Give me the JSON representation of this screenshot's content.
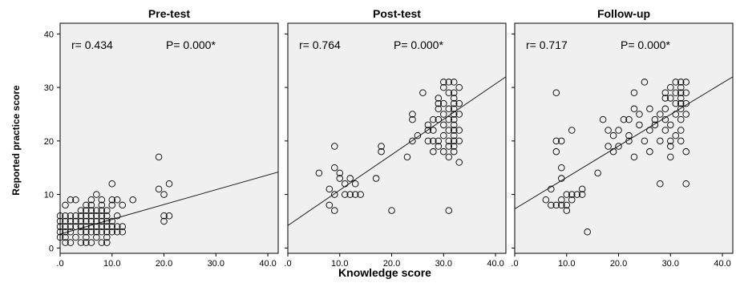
{
  "figure": {
    "xlabel": "Knowledge score",
    "ylabel": "Reported practice score"
  },
  "chart_data": [
    {
      "type": "scatter",
      "title": "Pre-test",
      "annotation": {
        "r": "r= 0.434",
        "p": "P= 0.000*"
      },
      "xlim": [
        0,
        42
      ],
      "ylim": [
        -1,
        42
      ],
      "xticks": [
        ".0",
        "10.0",
        "20.0",
        "30.0",
        "40.0"
      ],
      "yticks": [
        "0",
        "10",
        "20",
        "30",
        "40"
      ],
      "fit_line": {
        "x": [
          0,
          42
        ],
        "y": [
          2.6,
          14.2
        ]
      },
      "points": [
        [
          1,
          1
        ],
        [
          2,
          1
        ],
        [
          4,
          1
        ],
        [
          5,
          1
        ],
        [
          6,
          1
        ],
        [
          8,
          1
        ],
        [
          9,
          1
        ],
        [
          0,
          2
        ],
        [
          1,
          2
        ],
        [
          3,
          2
        ],
        [
          5,
          2
        ],
        [
          7,
          2
        ],
        [
          9,
          2
        ],
        [
          0,
          3
        ],
        [
          1,
          3
        ],
        [
          2,
          3
        ],
        [
          4,
          3
        ],
        [
          5,
          3
        ],
        [
          6,
          3
        ],
        [
          7,
          3
        ],
        [
          8,
          3
        ],
        [
          9,
          3
        ],
        [
          10,
          3
        ],
        [
          11,
          3
        ],
        [
          12,
          3
        ],
        [
          0,
          4
        ],
        [
          1,
          4
        ],
        [
          2,
          4
        ],
        [
          3,
          4
        ],
        [
          4,
          4
        ],
        [
          5,
          4
        ],
        [
          6,
          4
        ],
        [
          7,
          4
        ],
        [
          8,
          4
        ],
        [
          9,
          4
        ],
        [
          10,
          4
        ],
        [
          11,
          4
        ],
        [
          12,
          4
        ],
        [
          0,
          5
        ],
        [
          1,
          5
        ],
        [
          2,
          5
        ],
        [
          3,
          5
        ],
        [
          4,
          5
        ],
        [
          5,
          5
        ],
        [
          6,
          5
        ],
        [
          7,
          5
        ],
        [
          8,
          5
        ],
        [
          9,
          5
        ],
        [
          10,
          5
        ],
        [
          0,
          6
        ],
        [
          1,
          6
        ],
        [
          2,
          6
        ],
        [
          3,
          6
        ],
        [
          4,
          6
        ],
        [
          5,
          6
        ],
        [
          6,
          6
        ],
        [
          7,
          6
        ],
        [
          8,
          6
        ],
        [
          9,
          6
        ],
        [
          11,
          6
        ],
        [
          4,
          7
        ],
        [
          5,
          7
        ],
        [
          6,
          7
        ],
        [
          7,
          7
        ],
        [
          8,
          7
        ],
        [
          9,
          7
        ],
        [
          1,
          8
        ],
        [
          5,
          8
        ],
        [
          6,
          8
        ],
        [
          8,
          8
        ],
        [
          10,
          8
        ],
        [
          12,
          8
        ],
        [
          2,
          9
        ],
        [
          3,
          9
        ],
        [
          6,
          9
        ],
        [
          8,
          9
        ],
        [
          10,
          9
        ],
        [
          11,
          9
        ],
        [
          14,
          9
        ],
        [
          7,
          10
        ],
        [
          10,
          12
        ],
        [
          19,
          17
        ],
        [
          19,
          11
        ],
        [
          20,
          10
        ],
        [
          21,
          12
        ],
        [
          21,
          6
        ],
        [
          20,
          6
        ],
        [
          20,
          5
        ]
      ]
    },
    {
      "type": "scatter",
      "title": "Post-test",
      "annotation": {
        "r": "r= 0.764",
        "p": "P= 0.000*"
      },
      "xlim": [
        0,
        42
      ],
      "ylim": [
        -1,
        42
      ],
      "xticks": [
        ".0",
        "10.0",
        "20.0",
        "30.0",
        "40.0"
      ],
      "yticks": [
        "0",
        "10",
        "20",
        "30",
        "40"
      ],
      "fit_line": {
        "x": [
          0,
          42
        ],
        "y": [
          4.2,
          32
        ]
      },
      "points": [
        [
          6,
          14
        ],
        [
          8,
          11
        ],
        [
          8,
          8
        ],
        [
          9,
          7
        ],
        [
          9,
          10
        ],
        [
          9,
          15
        ],
        [
          9,
          19
        ],
        [
          10,
          13
        ],
        [
          10,
          14
        ],
        [
          11,
          10
        ],
        [
          11,
          12
        ],
        [
          12,
          10
        ],
        [
          12,
          13
        ],
        [
          13,
          12
        ],
        [
          13,
          10
        ],
        [
          14,
          10
        ],
        [
          17,
          13
        ],
        [
          18,
          19
        ],
        [
          18,
          18
        ],
        [
          20,
          7
        ],
        [
          23,
          17
        ],
        [
          24,
          20
        ],
        [
          24,
          24
        ],
        [
          24,
          25
        ],
        [
          25,
          21
        ],
        [
          26,
          29
        ],
        [
          27,
          20
        ],
        [
          27,
          23
        ],
        [
          28,
          24
        ],
        [
          28,
          22
        ],
        [
          28,
          18
        ],
        [
          29,
          19
        ],
        [
          29,
          20
        ],
        [
          29,
          24
        ],
        [
          29,
          26
        ],
        [
          29,
          28
        ],
        [
          30,
          30
        ],
        [
          30,
          18
        ],
        [
          30,
          23
        ],
        [
          30,
          21
        ],
        [
          30,
          25
        ],
        [
          30,
          27
        ],
        [
          31,
          31
        ],
        [
          31,
          29
        ],
        [
          31,
          26
        ],
        [
          31,
          24
        ],
        [
          31,
          22
        ],
        [
          31,
          20
        ],
        [
          31,
          19
        ],
        [
          31,
          17
        ],
        [
          31,
          7
        ],
        [
          32,
          31
        ],
        [
          32,
          29
        ],
        [
          32,
          28
        ],
        [
          32,
          27
        ],
        [
          32,
          26
        ],
        [
          32,
          25
        ],
        [
          32,
          24
        ],
        [
          32,
          23
        ],
        [
          32,
          22
        ],
        [
          32,
          21
        ],
        [
          32,
          20
        ],
        [
          32,
          19
        ],
        [
          32,
          18
        ],
        [
          33,
          30
        ],
        [
          33,
          27
        ],
        [
          33,
          25
        ],
        [
          33,
          22
        ],
        [
          33,
          20
        ],
        [
          33,
          16
        ],
        [
          30,
          31
        ],
        [
          29,
          27
        ],
        [
          28,
          20
        ],
        [
          27,
          22
        ]
      ]
    },
    {
      "type": "scatter",
      "title": "Follow-up",
      "annotation": {
        "r": "r= 0.717",
        "p": "P= 0.000*"
      },
      "xlim": [
        0,
        42
      ],
      "ylim": [
        -1,
        42
      ],
      "xticks": [
        ".0",
        "10.0",
        "20.0",
        "30.0",
        "40.0"
      ],
      "yticks": [
        "0",
        "10",
        "20",
        "30",
        "40"
      ],
      "fit_line": {
        "x": [
          0,
          42
        ],
        "y": [
          7.3,
          32
        ]
      },
      "points": [
        [
          6,
          9
        ],
        [
          7,
          8
        ],
        [
          7,
          11
        ],
        [
          8,
          8
        ],
        [
          8,
          20
        ],
        [
          8,
          18
        ],
        [
          8,
          29
        ],
        [
          9,
          20
        ],
        [
          9,
          13
        ],
        [
          9,
          15
        ],
        [
          9,
          9
        ],
        [
          9,
          8
        ],
        [
          10,
          8
        ],
        [
          10,
          7
        ],
        [
          10,
          10
        ],
        [
          11,
          9
        ],
        [
          11,
          10
        ],
        [
          11,
          22
        ],
        [
          12,
          10
        ],
        [
          13,
          10
        ],
        [
          13,
          11
        ],
        [
          14,
          3
        ],
        [
          16,
          14
        ],
        [
          17,
          24
        ],
        [
          18,
          22
        ],
        [
          18,
          19
        ],
        [
          19,
          21
        ],
        [
          19,
          18
        ],
        [
          20,
          22
        ],
        [
          20,
          19
        ],
        [
          21,
          24
        ],
        [
          22,
          21
        ],
        [
          22,
          20
        ],
        [
          22,
          24
        ],
        [
          23,
          17
        ],
        [
          23,
          26
        ],
        [
          23,
          29
        ],
        [
          24,
          23
        ],
        [
          24,
          25
        ],
        [
          25,
          31
        ],
        [
          25,
          20
        ],
        [
          26,
          26
        ],
        [
          26,
          22
        ],
        [
          26,
          18
        ],
        [
          27,
          24
        ],
        [
          27,
          23
        ],
        [
          28,
          25
        ],
        [
          28,
          20
        ],
        [
          28,
          12
        ],
        [
          29,
          29
        ],
        [
          29,
          28
        ],
        [
          29,
          26
        ],
        [
          29,
          24
        ],
        [
          29,
          22
        ],
        [
          30,
          30
        ],
        [
          30,
          23
        ],
        [
          30,
          20
        ],
        [
          30,
          19
        ],
        [
          30,
          17
        ],
        [
          30,
          28
        ],
        [
          31,
          31
        ],
        [
          31,
          29
        ],
        [
          31,
          27
        ],
        [
          31,
          25
        ],
        [
          31,
          21
        ],
        [
          32,
          31
        ],
        [
          32,
          30
        ],
        [
          32,
          29
        ],
        [
          32,
          28
        ],
        [
          32,
          27
        ],
        [
          32,
          26
        ],
        [
          32,
          24
        ],
        [
          32,
          22
        ],
        [
          32,
          20
        ],
        [
          33,
          31
        ],
        [
          33,
          29
        ],
        [
          33,
          27
        ],
        [
          33,
          25
        ],
        [
          33,
          18
        ],
        [
          33,
          12
        ]
      ]
    }
  ]
}
